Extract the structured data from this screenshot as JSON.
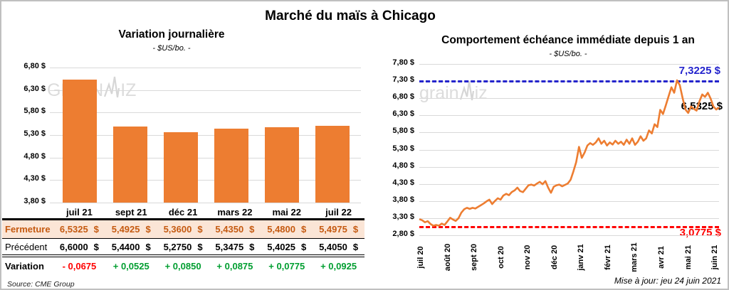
{
  "page": {
    "title": "Marché du maïs à Chicago",
    "update_note": "Mise à jour: jeu 24 juin 2021",
    "source_note": "Source: CME Group",
    "watermark_upper": {
      "pre": "GRAIN",
      "post": "IZ"
    },
    "watermark_lower": {
      "pre": "grain",
      "post": "iz"
    }
  },
  "colors": {
    "bar": "#ED7D31",
    "line": "#ED7D31",
    "max_line": "#2424CD",
    "min_line": "#FF0000",
    "grid": "#D9D9D9",
    "close_bg": "#FBE5D6",
    "close_text": "#C55A11",
    "negative": "#FF0000",
    "positive": "#009E30",
    "watermark": "#DCDCDC"
  },
  "chart_data": [
    {
      "type": "bar",
      "title": "Variation journalière",
      "subtitle": "- $US/bo. -",
      "categories": [
        "juil 21",
        "sept 21",
        "déc 21",
        "mars 22",
        "mai 22",
        "juil 22"
      ],
      "values": [
        6.5325,
        5.4925,
        5.36,
        5.435,
        5.48,
        5.4975
      ],
      "ylim": [
        3.8,
        6.8
      ],
      "ytick_step": 0.5,
      "ytick_labels": [
        "6,80 $",
        "6,30 $",
        "5,80 $",
        "5,30 $",
        "4,80 $",
        "4,30 $",
        "3,80 $"
      ],
      "grid": true,
      "legend": "none"
    },
    {
      "type": "line",
      "title": "Comportement échéance immédiate depuis 1 an",
      "subtitle": "- $US/bo. -",
      "x_labels": [
        "juil 20",
        "août 20",
        "sept 20",
        "oct 20",
        "nov 20",
        "déc 20",
        "janv 21",
        "févr 21",
        "mars 21",
        "avr 21",
        "mai 21",
        "juin 21"
      ],
      "x_label_rotation": -90,
      "ylim": [
        2.8,
        7.8
      ],
      "ytick_step": 0.5,
      "ytick_labels": [
        "7,80 $",
        "7,30 $",
        "6,80 $",
        "6,30 $",
        "5,80 $",
        "5,30 $",
        "4,80 $",
        "4,30 $",
        "3,80 $",
        "3,30 $",
        "2,80 $"
      ],
      "grid": true,
      "legend": "none",
      "max_line": {
        "value": 7.3225,
        "label": "7,3225 $"
      },
      "min_line": {
        "value": 3.0775,
        "label": "3,0775 $"
      },
      "last_point": {
        "value": 6.5325,
        "label": "6,5325 $"
      },
      "values": [
        3.27,
        3.24,
        3.18,
        3.21,
        3.13,
        3.0775,
        3.1,
        3.08,
        3.14,
        3.1,
        3.2,
        3.31,
        3.26,
        3.22,
        3.3,
        3.46,
        3.56,
        3.6,
        3.57,
        3.6,
        3.58,
        3.63,
        3.68,
        3.73,
        3.79,
        3.84,
        3.71,
        3.8,
        3.88,
        3.84,
        3.96,
        4.01,
        3.97,
        4.06,
        4.11,
        4.19,
        4.09,
        4.06,
        4.16,
        4.26,
        4.28,
        4.25,
        4.31,
        4.36,
        4.29,
        4.38,
        4.19,
        4.04,
        4.22,
        4.26,
        4.28,
        4.23,
        4.27,
        4.31,
        4.42,
        4.66,
        4.93,
        5.38,
        5.06,
        5.21,
        5.42,
        5.49,
        5.44,
        5.51,
        5.63,
        5.47,
        5.56,
        5.42,
        5.51,
        5.45,
        5.56,
        5.47,
        5.53,
        5.44,
        5.59,
        5.47,
        5.63,
        5.44,
        5.53,
        5.69,
        5.56,
        5.63,
        5.86,
        5.77,
        6.04,
        5.96,
        6.46,
        6.34,
        6.59,
        6.86,
        7.12,
        6.96,
        7.3225,
        7.18,
        6.8,
        6.47,
        6.37,
        6.56,
        6.49,
        6.44,
        6.71,
        6.91,
        6.84,
        6.96,
        6.79,
        6.56,
        6.47,
        6.5325
      ]
    }
  ],
  "table": {
    "col_headers": [
      "juil 21",
      "sept 21",
      "déc 21",
      "mars 22",
      "mai 22",
      "juil 22"
    ],
    "rows": [
      {
        "label": "Fermeture",
        "key": "close",
        "unit": "$",
        "values": [
          "6,5325",
          "5,4925",
          "5,3600",
          "5,4350",
          "5,4800",
          "5,4975"
        ]
      },
      {
        "label": "Précédent",
        "key": "prev",
        "unit": "$",
        "values": [
          "6,6000",
          "5,4400",
          "5,2750",
          "5,3475",
          "5,4025",
          "5,4050"
        ]
      },
      {
        "label": "Variation",
        "key": "var",
        "values": [
          "- 0,0675",
          "+ 0,0525",
          "+ 0,0850",
          "+ 0,0875",
          "+ 0,0775",
          "+ 0,0925"
        ]
      }
    ]
  }
}
